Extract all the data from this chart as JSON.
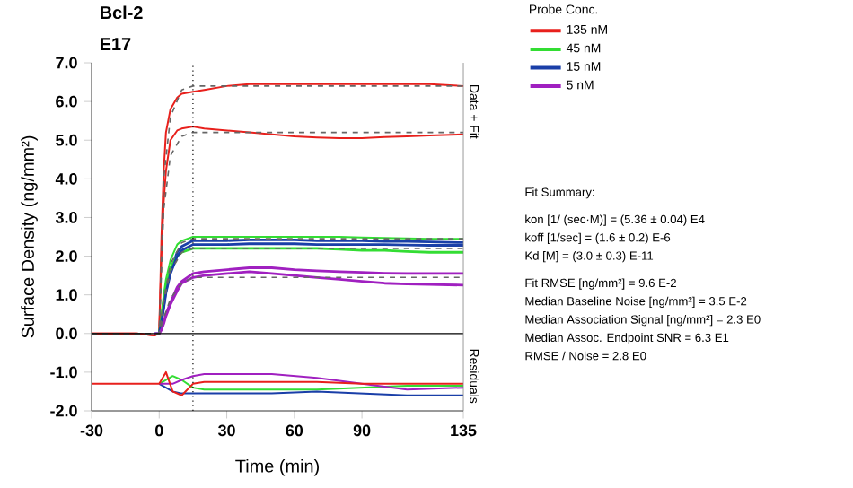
{
  "chart_data": [
    {
      "type": "line",
      "title": "Bcl-2",
      "subtitle": "E17",
      "xlabel": "Time (min)",
      "ylabel": "Surface Density (ng/mm²)",
      "legend_title": "Probe Conc.",
      "legend": "right",
      "grid": false,
      "marker": "none",
      "xlim": [
        -30,
        135
      ],
      "xticks": [
        -30,
        0,
        30,
        60,
        90,
        135
      ],
      "ylim": [
        -2,
        7
      ],
      "yticks": [
        {
          "value": -2,
          "label": "-2.0"
        },
        {
          "value": -1,
          "label": "-1.0"
        },
        {
          "value": 0,
          "label": "0.0"
        },
        {
          "value": 1,
          "label": "1.0"
        },
        {
          "value": 2,
          "label": "2.0"
        },
        {
          "value": 3,
          "label": "3.0"
        },
        {
          "value": 4,
          "label": "4.0"
        },
        {
          "value": 5,
          "label": "5.0"
        },
        {
          "value": 6,
          "label": "6.0"
        },
        {
          "value": 7,
          "label": "7.0"
        }
      ],
      "ref_lines": [
        {
          "axis": "x",
          "value": 15,
          "color": "#000000",
          "line_style": "dotted"
        },
        {
          "axis": "y",
          "value": 0,
          "color": "#000000",
          "line_style": "solid"
        }
      ],
      "annotations": [
        "Data + Fit",
        "Residuals"
      ],
      "series": [
        {
          "name": "135 nM",
          "color": "#e8201c",
          "line_style": "solid",
          "x": [
            -30,
            -20,
            -10,
            -2,
            0,
            1,
            2,
            3,
            5,
            8,
            10,
            15,
            20,
            30,
            40,
            50,
            60,
            70,
            80,
            90,
            100,
            110,
            120,
            135
          ],
          "values": [
            0,
            0,
            0,
            -0.05,
            0,
            2.5,
            4.2,
            5.2,
            5.8,
            6.1,
            6.2,
            6.25,
            6.3,
            6.4,
            6.45,
            6.45,
            6.45,
            6.45,
            6.45,
            6.45,
            6.45,
            6.45,
            6.45,
            6.4
          ]
        },
        {
          "name": "45 nM",
          "color": "#33dd33",
          "line_style": "solid",
          "x": [
            -2,
            0,
            1,
            2,
            3,
            5,
            8,
            10,
            15,
            20,
            30,
            40,
            50,
            60,
            70,
            80,
            90,
            100,
            110,
            120,
            135
          ],
          "values": [
            -0.03,
            0,
            0.5,
            1.0,
            1.4,
            1.9,
            2.3,
            2.4,
            2.5,
            2.5,
            2.5,
            2.5,
            2.5,
            2.5,
            2.5,
            2.5,
            2.48,
            2.47,
            2.46,
            2.45,
            2.45
          ]
        },
        {
          "name": "15 nM",
          "color": "#1a3fa8",
          "line_style": "solid",
          "x": [
            -2,
            0,
            1,
            2,
            3,
            5,
            8,
            10,
            15,
            20,
            30,
            40,
            50,
            60,
            70,
            80,
            90,
            100,
            110,
            120,
            135
          ],
          "values": [
            0,
            0,
            0.3,
            0.7,
            1.1,
            1.6,
            2.1,
            2.25,
            2.4,
            2.4,
            2.4,
            2.42,
            2.42,
            2.42,
            2.4,
            2.4,
            2.4,
            2.38,
            2.38,
            2.37,
            2.35
          ]
        },
        {
          "name": "5 nM",
          "color": "#a020c0",
          "line_style": "solid",
          "x": [
            -2,
            0,
            1,
            2,
            3,
            5,
            8,
            10,
            15,
            20,
            30,
            40,
            50,
            60,
            70,
            80,
            90,
            100,
            110,
            120,
            135
          ],
          "values": [
            0,
            0,
            0.1,
            0.3,
            0.5,
            0.8,
            1.2,
            1.35,
            1.55,
            1.6,
            1.65,
            1.7,
            1.7,
            1.65,
            1.62,
            1.6,
            1.58,
            1.56,
            1.55,
            1.55,
            1.55
          ]
        },
        {
          "color": "#e8201c",
          "line_style": "solid",
          "x": [
            -30,
            -20,
            -10,
            -2,
            0,
            1,
            2,
            3,
            5,
            8,
            10,
            15,
            20,
            30,
            40,
            50,
            60,
            70,
            80,
            90,
            100,
            110,
            120,
            135
          ],
          "values": [
            0,
            0,
            0,
            -0.05,
            0,
            2.0,
            3.4,
            4.2,
            5.0,
            5.25,
            5.3,
            5.35,
            5.3,
            5.25,
            5.2,
            5.15,
            5.1,
            5.07,
            5.05,
            5.05,
            5.08,
            5.1,
            5.12,
            5.15
          ]
        },
        {
          "color": "#33dd33",
          "line_style": "solid",
          "x": [
            0,
            1,
            2,
            3,
            5,
            8,
            10,
            15,
            20,
            30,
            40,
            50,
            60,
            70,
            80,
            90,
            100,
            110,
            120,
            135
          ],
          "values": [
            0,
            0.4,
            0.8,
            1.2,
            1.7,
            2.0,
            2.1,
            2.2,
            2.2,
            2.2,
            2.2,
            2.2,
            2.2,
            2.2,
            2.18,
            2.15,
            2.15,
            2.12,
            2.1,
            2.1
          ]
        },
        {
          "color": "#1a3fa8",
          "line_style": "solid",
          "x": [
            0,
            1,
            2,
            3,
            5,
            8,
            10,
            15,
            20,
            30,
            40,
            50,
            60,
            70,
            80,
            90,
            100,
            110,
            120,
            135
          ],
          "values": [
            0,
            0.3,
            0.65,
            1.05,
            1.55,
            2.0,
            2.15,
            2.3,
            2.3,
            2.3,
            2.32,
            2.32,
            2.32,
            2.3,
            2.3,
            2.3,
            2.3,
            2.29,
            2.28,
            2.28
          ]
        },
        {
          "color": "#a020c0",
          "line_style": "solid",
          "x": [
            0,
            1,
            2,
            3,
            5,
            8,
            10,
            15,
            20,
            30,
            40,
            50,
            60,
            70,
            80,
            90,
            100,
            110,
            120,
            135
          ],
          "values": [
            0,
            0.1,
            0.25,
            0.45,
            0.75,
            1.1,
            1.3,
            1.45,
            1.5,
            1.55,
            1.6,
            1.55,
            1.5,
            1.45,
            1.4,
            1.35,
            1.3,
            1.28,
            1.27,
            1.25
          ]
        },
        {
          "color": "#666666",
          "line_style": "dashed",
          "x": [
            -30,
            0,
            2,
            5,
            10,
            15,
            135
          ],
          "values": [
            0,
            0,
            4.0,
            5.6,
            6.3,
            6.4,
            6.4
          ]
        },
        {
          "color": "#666666",
          "line_style": "dashed",
          "x": [
            -30,
            0,
            2,
            5,
            10,
            15,
            135
          ],
          "values": [
            0,
            0,
            3.2,
            4.6,
            5.1,
            5.2,
            5.2
          ]
        },
        {
          "color": "#666666",
          "line_style": "dashed",
          "x": [
            -30,
            0,
            2,
            5,
            10,
            15,
            135
          ],
          "values": [
            0,
            0,
            0.9,
            1.8,
            2.35,
            2.45,
            2.45
          ]
        },
        {
          "color": "#666666",
          "line_style": "dashed",
          "x": [
            -30,
            0,
            2,
            5,
            10,
            15,
            135
          ],
          "values": [
            0,
            0,
            0.8,
            1.6,
            2.1,
            2.2,
            2.2
          ]
        },
        {
          "color": "#666666",
          "line_style": "dashed",
          "x": [
            -30,
            0,
            2,
            5,
            10,
            15,
            135
          ],
          "values": [
            0,
            0,
            0.4,
            0.9,
            1.3,
            1.45,
            1.45
          ]
        },
        {
          "color": "#33dd33",
          "line_style": "solid",
          "x": [
            0,
            3,
            6,
            10,
            15,
            20,
            30,
            50,
            70,
            90,
            110,
            135
          ],
          "values": [
            -1.3,
            -1.2,
            -1.1,
            -1.2,
            -1.4,
            -1.45,
            -1.45,
            -1.45,
            -1.45,
            -1.4,
            -1.35,
            -1.35
          ]
        },
        {
          "color": "#1a3fa8",
          "line_style": "solid",
          "x": [
            0,
            3,
            6,
            10,
            15,
            20,
            30,
            50,
            70,
            90,
            110,
            135
          ],
          "values": [
            -1.3,
            -1.4,
            -1.5,
            -1.55,
            -1.55,
            -1.55,
            -1.55,
            -1.55,
            -1.5,
            -1.55,
            -1.6,
            -1.6
          ]
        },
        {
          "color": "#a020c0",
          "line_style": "solid",
          "x": [
            0,
            3,
            6,
            10,
            15,
            20,
            30,
            50,
            70,
            90,
            110,
            135
          ],
          "values": [
            -1.3,
            -1.3,
            -1.3,
            -1.2,
            -1.1,
            -1.05,
            -1.05,
            -1.05,
            -1.15,
            -1.3,
            -1.45,
            -1.4
          ]
        },
        {
          "color": "#e8201c",
          "line_style": "solid",
          "x": [
            -30,
            -10,
            0,
            3,
            6,
            10,
            15,
            20,
            30,
            50,
            70,
            90,
            110,
            135
          ],
          "values": [
            -1.3,
            -1.3,
            -1.3,
            -1.0,
            -1.5,
            -1.6,
            -1.3,
            -1.25,
            -1.25,
            -1.25,
            -1.25,
            -1.3,
            -1.3,
            -1.3
          ]
        }
      ]
    },
    {
      "type": "other",
      "title": "Fit Summary:",
      "annotations": [
        "kon  [1/ (sec·M)]  =   (5.36 ± 0.04) E4",
        "koff  [1/sec]  =   (1.6 ± 0.2) E-6",
        "Kd  [M]  =   (3.0 ± 0.3) E-11",
        "Fit RMSE [ng/mm²]  =   9.6 E-2",
        "Median Baseline Noise [ng/mm²]  =   3.5 E-2",
        "Median Association Signal [ng/mm²]  =   2.3 E0",
        "Median Assoc. Endpoint SNR  =   6.3 E1",
        "RMSE / Noise  =   2.8 E0"
      ]
    }
  ]
}
